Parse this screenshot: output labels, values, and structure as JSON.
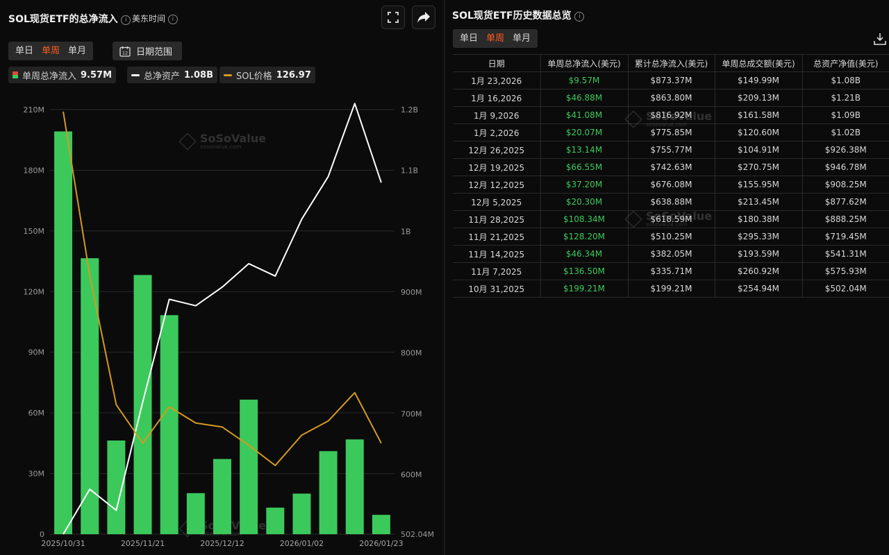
{
  "left_panel": {
    "title": "SOL现货ETF的总净流入",
    "timezone_label": "美东时间",
    "period_tabs": [
      "单日",
      "单周",
      "单月"
    ],
    "active_period": "单周",
    "date_range_label": "日期范围",
    "calendar_icon_text": "12",
    "legend": [
      {
        "label": "单周总净流入",
        "value": "9.57M",
        "color": "#3cc95c"
      },
      {
        "label": "总净资产",
        "value": "1.08B",
        "color": "#ffffff"
      },
      {
        "label": "SOL价格",
        "value": "126.97",
        "color": "#d49a1f"
      }
    ]
  },
  "right_panel": {
    "title": "SOL现货ETF历史数据总览",
    "period_tabs": [
      "单日",
      "单周",
      "单月"
    ],
    "active_period": "单周",
    "table": {
      "headers": [
        "日期",
        "单周总净流入(美元)",
        "累计总净流入(美元)",
        "单周总成交额(美元)",
        "总资产净值(美元)"
      ],
      "rows": [
        [
          "1月 23,2026",
          "$9.57M",
          "$873.37M",
          "$149.99M",
          "$1.08B"
        ],
        [
          "1月 16,2026",
          "$46.88M",
          "$863.80M",
          "$209.13M",
          "$1.21B"
        ],
        [
          "1月 9,2026",
          "$41.08M",
          "$816.92M",
          "$161.58M",
          "$1.09B"
        ],
        [
          "1月 2,2026",
          "$20.07M",
          "$775.85M",
          "$120.60M",
          "$1.02B"
        ],
        [
          "12月 26,2025",
          "$13.14M",
          "$755.77M",
          "$104.91M",
          "$926.38M"
        ],
        [
          "12月 19,2025",
          "$66.55M",
          "$742.63M",
          "$270.75M",
          "$946.78M"
        ],
        [
          "12月 12,2025",
          "$37.20M",
          "$676.08M",
          "$155.95M",
          "$908.25M"
        ],
        [
          "12月 5,2025",
          "$20.30M",
          "$638.88M",
          "$213.45M",
          "$877.62M"
        ],
        [
          "11月 28,2025",
          "$108.34M",
          "$618.59M",
          "$180.38M",
          "$888.25M"
        ],
        [
          "11月 21,2025",
          "$128.20M",
          "$510.25M",
          "$295.33M",
          "$719.45M"
        ],
        [
          "11月 14,2025",
          "$46.34M",
          "$382.05M",
          "$193.59M",
          "$541.31M"
        ],
        [
          "11月 7,2025",
          "$136.50M",
          "$335.71M",
          "$260.92M",
          "$575.93M"
        ],
        [
          "10月 31,2025",
          "$199.21M",
          "$199.21M",
          "$254.94M",
          "$502.04M"
        ]
      ]
    }
  },
  "watermark": {
    "brand": "SoSoValue",
    "sub": "sosovalue.com"
  },
  "chart_data": {
    "type": "bar",
    "x": [
      "2025/10/31",
      "2025/11/07",
      "2025/11/14",
      "2025/11/21",
      "2025/11/28",
      "2025/12/05",
      "2025/12/12",
      "2025/12/19",
      "2025/12/26",
      "2026/01/02",
      "2026/01/09",
      "2026/01/16",
      "2026/01/23"
    ],
    "x_tick_labels": [
      "2025/10/31",
      "2025/11/21",
      "2025/12/12",
      "2026/01/02",
      "2026/01/23"
    ],
    "x_tick_index": [
      0,
      3,
      6,
      9,
      12
    ],
    "series": [
      {
        "name": "单周总净流入",
        "type": "bar",
        "axis": "left",
        "color": "#3cc95c",
        "values": [
          199.21,
          136.5,
          46.34,
          128.2,
          108.34,
          20.3,
          37.2,
          66.55,
          13.14,
          20.07,
          41.08,
          46.88,
          9.57
        ]
      },
      {
        "name": "总净资产",
        "type": "line",
        "axis": "right",
        "color": "#ffffff",
        "values": [
          502.04,
          575.93,
          541.31,
          719.45,
          888.25,
          877.62,
          908.25,
          946.78,
          926.38,
          1020,
          1090,
          1210,
          1080
        ]
      },
      {
        "name": "SOL价格",
        "type": "line",
        "axis": "hidden",
        "color": "#d49a1f",
        "values": [
          209,
          128,
          64,
          45,
          63,
          55,
          53,
          44,
          34,
          49,
          56,
          70,
          45
        ]
      }
    ],
    "y_left": {
      "ticks": [
        "0",
        "30M",
        "60M",
        "90M",
        "120M",
        "150M",
        "180M",
        "210M"
      ],
      "range": [
        0,
        210
      ]
    },
    "y_right": {
      "ticks": [
        "502.04M",
        "600M",
        "700M",
        "800M",
        "900M",
        "1B",
        "1.1B",
        "1.2B"
      ],
      "tick_values": [
        502.04,
        600,
        700,
        800,
        900,
        1000,
        1100,
        1200
      ],
      "range": [
        502.04,
        1200
      ]
    },
    "grid": true
  }
}
